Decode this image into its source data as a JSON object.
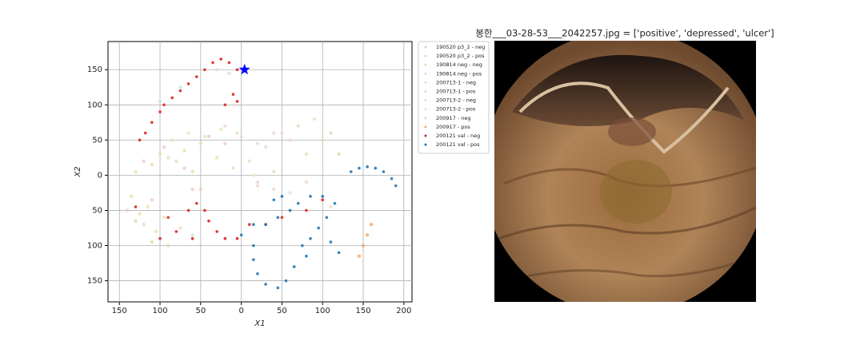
{
  "chart_data": {
    "type": "scatter",
    "xlabel": "X1",
    "ylabel": "X2",
    "xlim": [
      -164,
      210
    ],
    "ylim": [
      -180,
      190
    ],
    "xticks": [
      {
        "value": -150,
        "label": "150"
      },
      {
        "value": -100,
        "label": "100"
      },
      {
        "value": -50,
        "label": "50"
      },
      0,
      50,
      100,
      150,
      200
    ],
    "yticks": [
      {
        "value": -150,
        "label": "150"
      },
      {
        "value": -100,
        "label": "100"
      },
      {
        "value": -50,
        "label": "50"
      },
      0,
      50,
      100,
      150
    ],
    "grid": true,
    "legend": "outside upper right",
    "series": [
      {
        "name": "190520 p3_2 - neg",
        "color": "#f2c4cf",
        "x": [
          -120,
          -95,
          -70,
          -40,
          -20,
          -110,
          -60,
          -140
        ],
        "y": [
          20,
          40,
          10,
          55,
          45,
          -35,
          -20,
          -50
        ]
      },
      {
        "name": "190520 p3_2 - pos",
        "color": "#c8e6d4",
        "x": [
          -100,
          -75,
          -30,
          -60,
          -15,
          -120
        ],
        "y": [
          105,
          125,
          150,
          -85,
          145,
          -70
        ]
      },
      {
        "name": "190814 neg - neg",
        "color": "#e6e0b0",
        "x": [
          -130,
          -110,
          -90,
          -70,
          -50,
          -30,
          -10,
          -100,
          -80,
          -60
        ],
        "y": [
          5,
          15,
          25,
          35,
          45,
          25,
          10,
          30,
          20,
          5
        ]
      },
      {
        "name": "190814 neg - pos",
        "color": "#eadbc0",
        "x": [
          10,
          30,
          50,
          70,
          90,
          100,
          80,
          40
        ],
        "y": [
          20,
          40,
          60,
          70,
          80,
          50,
          30,
          5
        ]
      },
      {
        "name": "200713-1 - neg",
        "color": "#e8dfb8",
        "x": [
          -135,
          -115,
          -95,
          -75,
          -125,
          -105
        ],
        "y": [
          -30,
          -45,
          -60,
          -75,
          -55,
          -80
        ]
      },
      {
        "name": "200713-1 - pos",
        "color": "#f0d2e4",
        "x": [
          -20,
          0,
          20,
          40,
          60,
          20
        ],
        "y": [
          70,
          55,
          45,
          60,
          50,
          -10
        ]
      },
      {
        "name": "200713-2 - neg",
        "color": "#dde8c2",
        "x": [
          -85,
          -65,
          -45,
          -25,
          -5,
          15
        ],
        "y": [
          50,
          60,
          55,
          65,
          60,
          0
        ]
      },
      {
        "name": "200713-2 - pos",
        "color": "#f2d8c6",
        "x": [
          20,
          40,
          60,
          80,
          100,
          110
        ],
        "y": [
          -15,
          -20,
          -25,
          -10,
          -35,
          -45
        ]
      },
      {
        "name": "200917 - neg",
        "color": "#e4d6b6",
        "x": [
          -110,
          -90,
          -130,
          -50,
          110,
          120
        ],
        "y": [
          -95,
          -100,
          -65,
          -20,
          60,
          30
        ]
      },
      {
        "name": "200917 - pos",
        "color": "#f5a868",
        "x": [
          145,
          150,
          155,
          160
        ],
        "y": [
          -115,
          -100,
          -85,
          -70
        ]
      },
      {
        "name": "200121 val - neg",
        "color": "#d62728",
        "x": [
          -125,
          -118,
          -110,
          -100,
          -95,
          -85,
          -75,
          -65,
          -55,
          -45,
          -35,
          -25,
          -15,
          -5,
          -10,
          -20,
          -5,
          -65,
          -55,
          -45,
          -40,
          -30,
          -20,
          -5,
          10,
          -90,
          -80,
          -60,
          30,
          50,
          80,
          100,
          -130,
          -100
        ],
        "y": [
          50,
          60,
          75,
          90,
          100,
          110,
          120,
          130,
          140,
          150,
          160,
          165,
          160,
          150,
          115,
          100,
          105,
          -50,
          -40,
          -50,
          -65,
          -80,
          -90,
          -90,
          -70,
          -60,
          -80,
          -90,
          -70,
          -60,
          -50,
          -35,
          -45,
          -90
        ]
      },
      {
        "name": "200121 val - pos",
        "color": "#1f77b4",
        "x": [
          135,
          145,
          155,
          165,
          175,
          185,
          190,
          0,
          15,
          30,
          45,
          60,
          70,
          85,
          100,
          115,
          105,
          95,
          85,
          75,
          15,
          15,
          20,
          30,
          45,
          55,
          65,
          80,
          110,
          120,
          40,
          50
        ],
        "y": [
          5,
          10,
          12,
          10,
          5,
          -5,
          -15,
          -85,
          -70,
          -70,
          -60,
          -50,
          -40,
          -30,
          -30,
          -40,
          -60,
          -75,
          -90,
          -100,
          -100,
          -120,
          -140,
          -155,
          -160,
          -150,
          -130,
          -115,
          -95,
          -110,
          -35,
          -30
        ]
      }
    ],
    "highlight": {
      "x": 4,
      "y": 150,
      "color": "#0000ff"
    }
  },
  "image": {
    "title": "봉한___03-28-53___2042257.jpg = ['positive', 'depressed', 'ulcer']"
  }
}
